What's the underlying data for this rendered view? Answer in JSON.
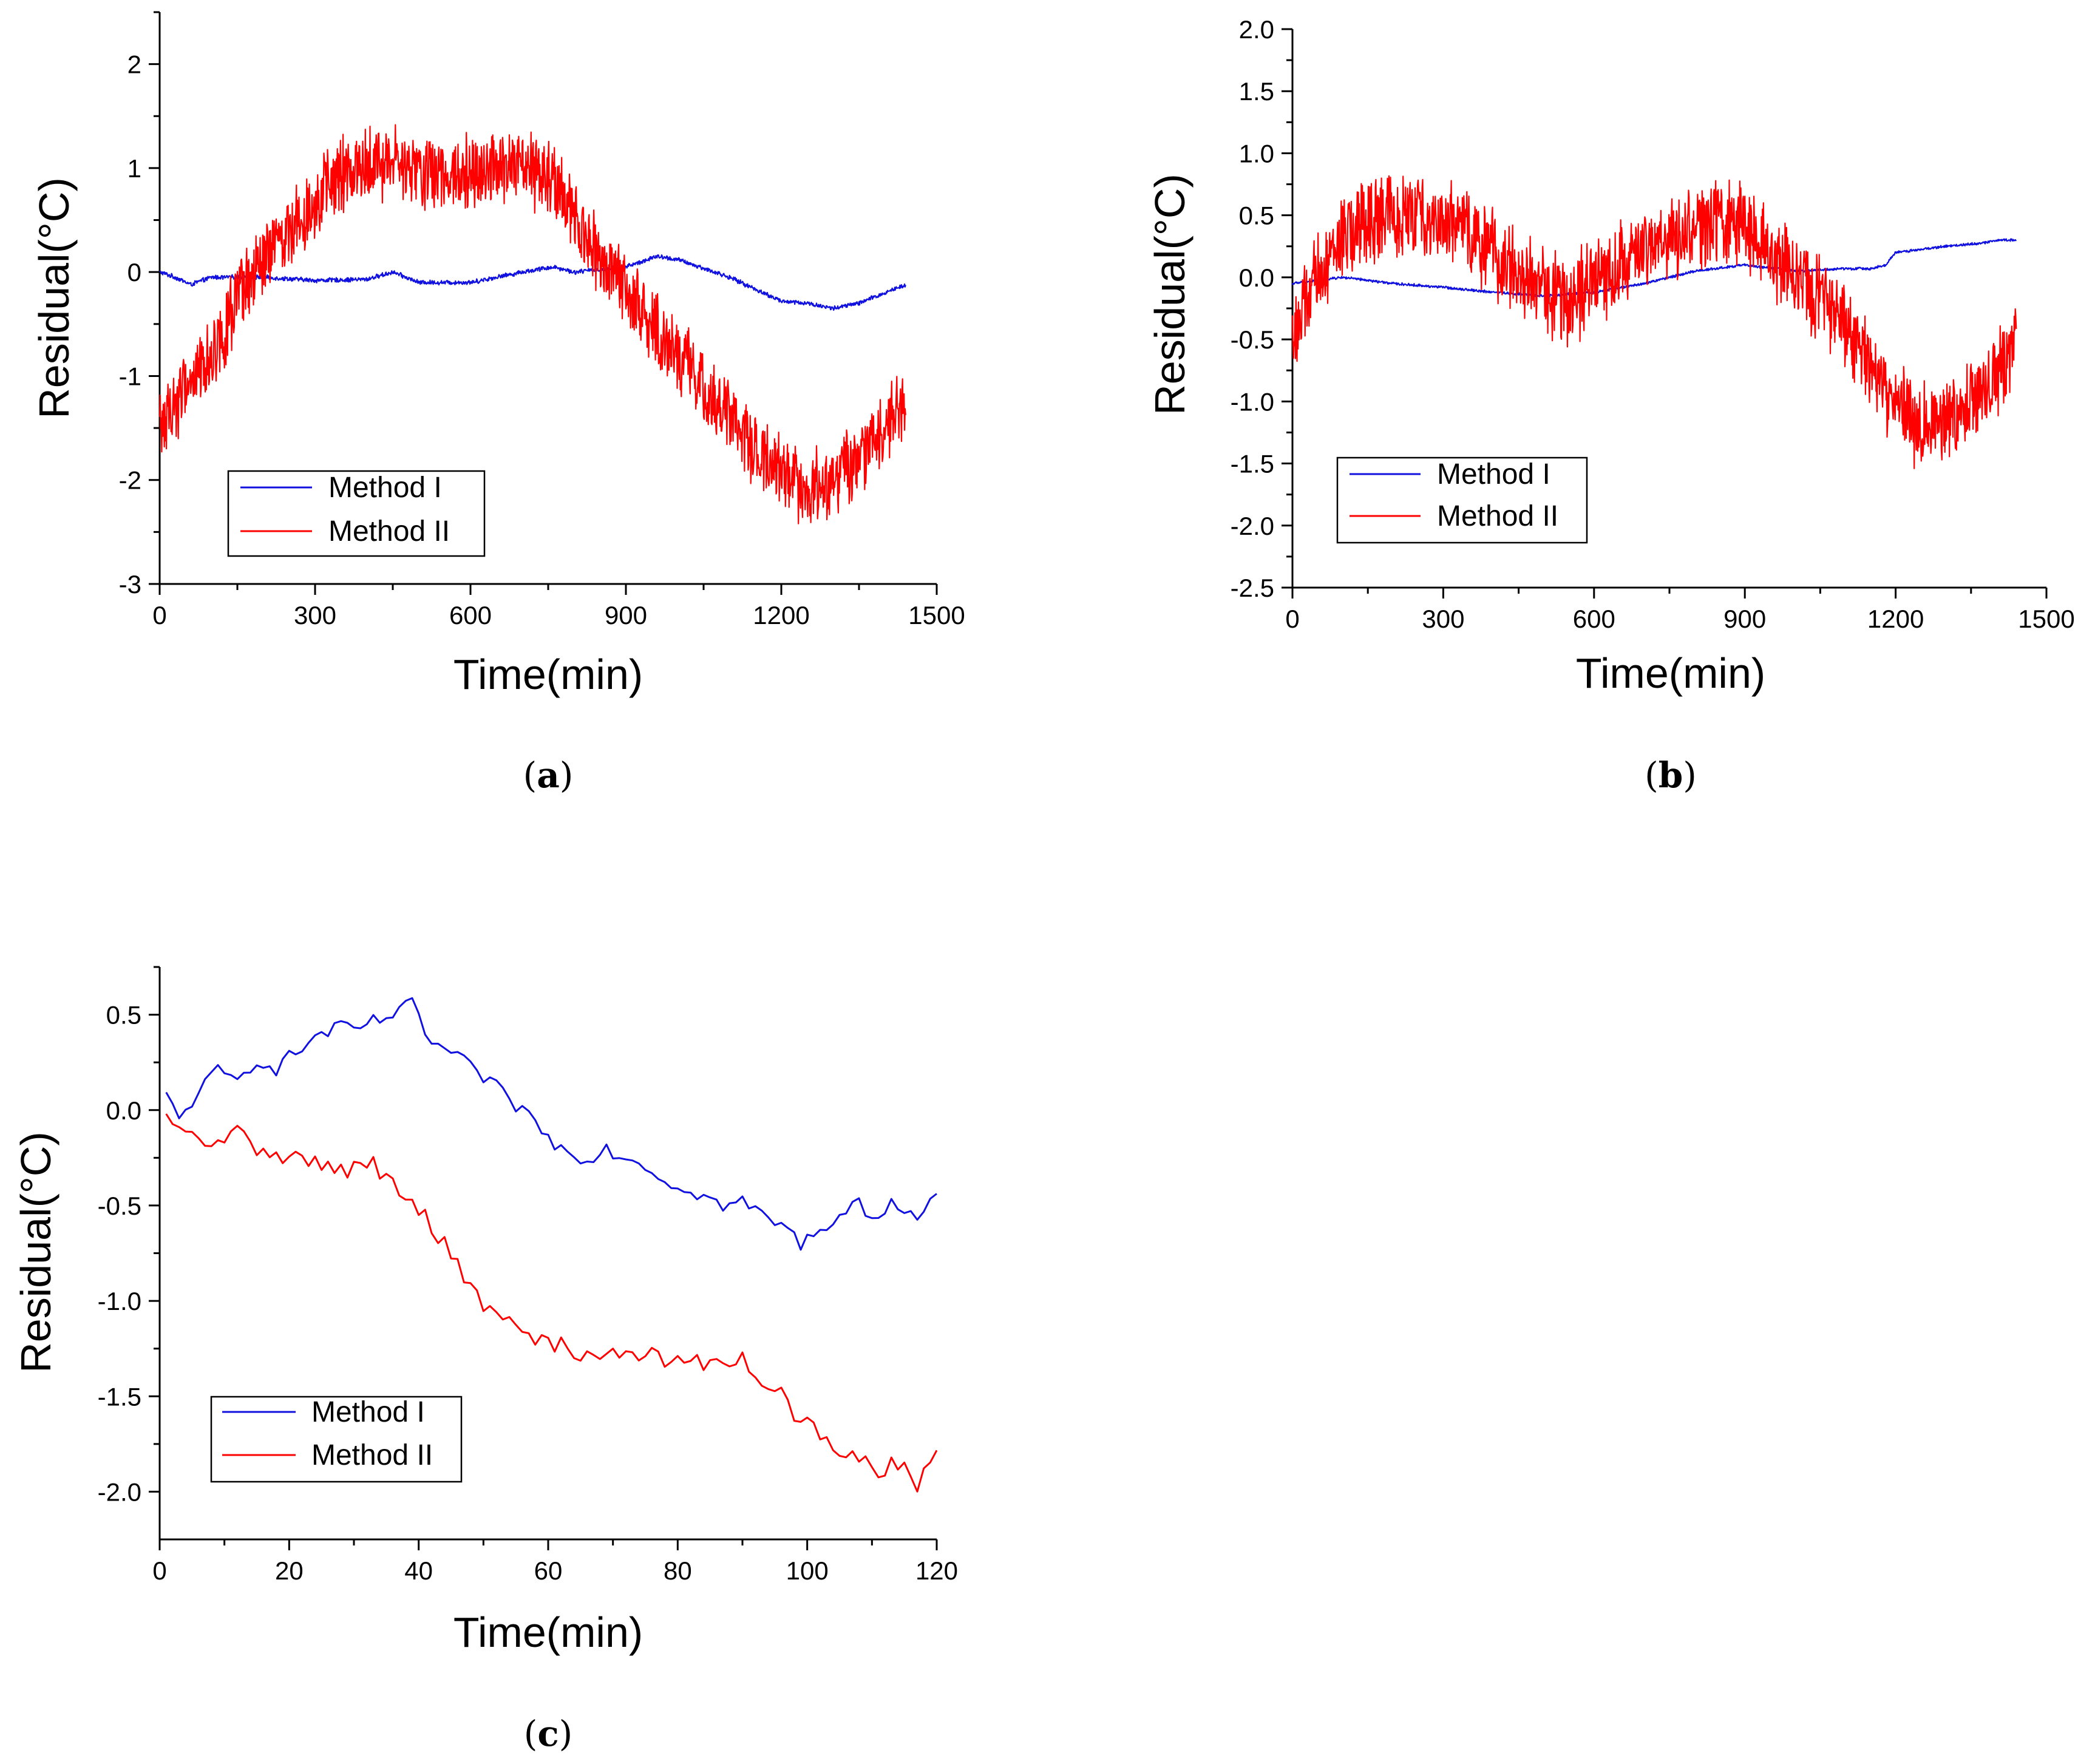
{
  "figure": {
    "colors": {
      "method1": "#1010e0",
      "method2": "#ff0000",
      "axis": "#000000",
      "background": "#ffffff"
    }
  },
  "chart_data": [
    {
      "id": "a",
      "panel_label": "a",
      "type": "line",
      "xlabel": "Time(min)",
      "ylabel": "Residual(°C)",
      "xlim": [
        0,
        1500
      ],
      "ylim": [
        -3,
        2.5
      ],
      "xticks": [
        0,
        300,
        600,
        900,
        1200,
        1500
      ],
      "xtick_labels": [
        "0",
        "300",
        "600",
        "900",
        "1200",
        "1500"
      ],
      "yticks": [
        -3,
        -2,
        -1,
        0,
        1,
        2
      ],
      "ytick_labels": [
        "-3",
        "-2",
        "-1",
        "0",
        "1",
        "2"
      ],
      "legend": {
        "position": "lower-left",
        "entries": [
          "Method I",
          "Method II"
        ]
      },
      "series": [
        {
          "name": "Method I",
          "color": "#1010e0",
          "noise": 0.025,
          "x": [
            0,
            30,
            60,
            100,
            200,
            300,
            400,
            450,
            500,
            600,
            700,
            760,
            800,
            900,
            960,
            1000,
            1100,
            1200,
            1250,
            1300,
            1350,
            1400,
            1440
          ],
          "y": [
            0,
            -0.05,
            -0.12,
            -0.05,
            -0.05,
            -0.08,
            -0.07,
            0.0,
            -0.1,
            -0.1,
            0.0,
            0.05,
            0.0,
            0.05,
            0.15,
            0.12,
            -0.05,
            -0.28,
            -0.3,
            -0.35,
            -0.3,
            -0.2,
            -0.12
          ]
        },
        {
          "name": "Method II",
          "color": "#ff0000",
          "noise": 0.42,
          "x": [
            0,
            50,
            100,
            150,
            200,
            250,
            300,
            350,
            400,
            450,
            500,
            550,
            600,
            650,
            700,
            750,
            800,
            850,
            900,
            950,
            1000,
            1050,
            1100,
            1150,
            1200,
            1250,
            1300,
            1350,
            1400,
            1440
          ],
          "y": [
            -1.5,
            -1.1,
            -0.8,
            -0.3,
            0.1,
            0.4,
            0.7,
            0.9,
            1.05,
            1.05,
            0.95,
            0.95,
            1.0,
            1.0,
            1.0,
            0.9,
            0.5,
            0.1,
            -0.2,
            -0.5,
            -0.8,
            -1.1,
            -1.4,
            -1.7,
            -1.9,
            -2.1,
            -2.0,
            -1.8,
            -1.5,
            -1.3
          ]
        }
      ]
    },
    {
      "id": "b",
      "panel_label": "b",
      "type": "line",
      "xlabel": "Time(min)",
      "ylabel": "Residual(°C)",
      "xlim": [
        0,
        1500
      ],
      "ylim": [
        -2.5,
        2.0
      ],
      "xticks": [
        0,
        300,
        600,
        900,
        1200,
        1500
      ],
      "xtick_labels": [
        "0",
        "300",
        "600",
        "900",
        "1200",
        "1500"
      ],
      "yticks": [
        -2.5,
        -2.0,
        -1.5,
        -1.0,
        -0.5,
        0.0,
        0.5,
        1.0,
        1.5,
        2.0
      ],
      "ytick_labels": [
        "-2.5",
        "-2.0",
        "-1.5",
        "-1.0",
        "-0.5",
        "0.0",
        "0.5",
        "1.0",
        "1.5",
        "2.0"
      ],
      "legend": {
        "position": "lower-left",
        "entries": [
          "Method I",
          "Method II"
        ]
      },
      "series": [
        {
          "name": "Method I",
          "color": "#1010e0",
          "noise": 0.012,
          "x": [
            0,
            100,
            200,
            300,
            400,
            500,
            600,
            700,
            800,
            900,
            1000,
            1100,
            1150,
            1180,
            1200,
            1300,
            1380,
            1400,
            1440
          ],
          "y": [
            -0.05,
            0.0,
            -0.05,
            -0.08,
            -0.12,
            -0.15,
            -0.12,
            -0.05,
            0.05,
            0.1,
            0.05,
            0.07,
            0.07,
            0.1,
            0.2,
            0.25,
            0.28,
            0.3,
            0.3
          ]
        },
        {
          "name": "Method II",
          "color": "#ff0000",
          "noise": 0.4,
          "x": [
            0,
            50,
            100,
            150,
            200,
            250,
            300,
            350,
            400,
            450,
            500,
            550,
            600,
            650,
            700,
            750,
            800,
            850,
            900,
            950,
            1000,
            1050,
            1100,
            1150,
            1200,
            1250,
            1300,
            1350,
            1400,
            1440
          ],
          "y": [
            -0.5,
            0.0,
            0.3,
            0.45,
            0.5,
            0.5,
            0.45,
            0.35,
            0.2,
            0.05,
            -0.1,
            -0.2,
            -0.05,
            0.1,
            0.2,
            0.3,
            0.4,
            0.45,
            0.4,
            0.2,
            0.0,
            -0.2,
            -0.4,
            -0.7,
            -1.0,
            -1.2,
            -1.2,
            -1.0,
            -0.8,
            -0.5
          ]
        }
      ]
    },
    {
      "id": "c",
      "panel_label": "c",
      "type": "line",
      "xlabel": "Time(min)",
      "ylabel": "Residual(°C)",
      "xlim": [
        0,
        120
      ],
      "ylim": [
        -2.25,
        0.75
      ],
      "xticks": [
        0,
        20,
        40,
        60,
        80,
        100,
        120
      ],
      "xtick_labels": [
        "0",
        "20",
        "40",
        "60",
        "80",
        "100",
        "120"
      ],
      "yticks": [
        -2.0,
        -1.5,
        -1.0,
        -0.5,
        0.0,
        0.5
      ],
      "ytick_labels": [
        "-2.0",
        "-1.5",
        "-1.0",
        "-0.5",
        "0.0",
        "0.5"
      ],
      "legend": {
        "position": "lower-left",
        "entries": [
          "Method I",
          "Method II"
        ]
      },
      "series": [
        {
          "name": "Method I",
          "color": "#1010e0",
          "noise": 0.04,
          "x": [
            1,
            3,
            6,
            9,
            12,
            15,
            18,
            21,
            24,
            27,
            30,
            33,
            36,
            39,
            42,
            45,
            48,
            51,
            54,
            57,
            60,
            63,
            66,
            69,
            72,
            75,
            78,
            81,
            84,
            87,
            90,
            93,
            96,
            99,
            102,
            105,
            108,
            111,
            114,
            117,
            120
          ],
          "y": [
            0.07,
            -0.05,
            0.1,
            0.2,
            0.15,
            0.27,
            0.22,
            0.3,
            0.38,
            0.43,
            0.42,
            0.46,
            0.5,
            0.55,
            0.35,
            0.3,
            0.22,
            0.15,
            0.05,
            -0.02,
            -0.15,
            -0.22,
            -0.25,
            -0.2,
            -0.25,
            -0.28,
            -0.38,
            -0.4,
            -0.45,
            -0.5,
            -0.48,
            -0.55,
            -0.6,
            -0.7,
            -0.62,
            -0.55,
            -0.5,
            -0.55,
            -0.48,
            -0.55,
            -0.45
          ]
        },
        {
          "name": "Method II",
          "color": "#ff0000",
          "noise": 0.05,
          "x": [
            1,
            3,
            6,
            9,
            12,
            15,
            18,
            21,
            24,
            27,
            30,
            33,
            36,
            39,
            42,
            45,
            48,
            51,
            54,
            57,
            60,
            63,
            66,
            69,
            72,
            75,
            78,
            81,
            84,
            87,
            90,
            93,
            96,
            99,
            102,
            105,
            108,
            111,
            114,
            117,
            120
          ],
          "y": [
            -0.05,
            -0.12,
            -0.15,
            -0.18,
            -0.12,
            -0.2,
            -0.22,
            -0.25,
            -0.28,
            -0.32,
            -0.3,
            -0.28,
            -0.4,
            -0.5,
            -0.6,
            -0.75,
            -0.95,
            -1.05,
            -1.12,
            -1.18,
            -1.22,
            -1.25,
            -1.28,
            -1.3,
            -1.25,
            -1.27,
            -1.3,
            -1.35,
            -1.32,
            -1.35,
            -1.3,
            -1.4,
            -1.5,
            -1.62,
            -1.72,
            -1.8,
            -1.85,
            -1.88,
            -1.85,
            -1.95,
            -1.8
          ]
        }
      ]
    }
  ]
}
